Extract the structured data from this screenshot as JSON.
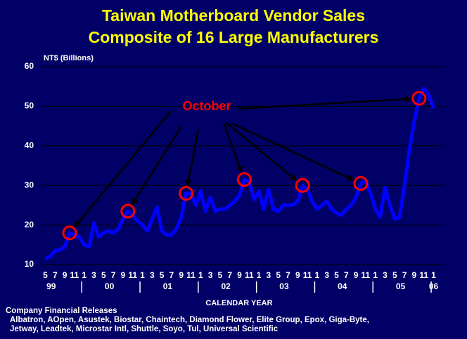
{
  "chart_data": {
    "type": "line",
    "title": "Taiwan Motherboard Vendor Sales",
    "subtitle": "Composite of 16 Large Manufacturers",
    "y_label": "NT$ (Billions)",
    "x_label": "CALENDAR YEAR",
    "annotation": "October",
    "color": "#0000ff",
    "ylim": [
      10,
      60
    ],
    "yticks": [
      10,
      20,
      30,
      40,
      50,
      60
    ],
    "grid": true,
    "categories": [
      "5",
      null,
      "7",
      null,
      "9",
      null,
      "11",
      null,
      "1",
      null,
      "3",
      null,
      "5",
      null,
      "7",
      null,
      "9",
      null,
      "11",
      null,
      "1",
      null,
      "3",
      null,
      "5",
      null,
      "7",
      null,
      "9",
      null,
      "11",
      null,
      "1",
      null,
      "3",
      null,
      "5",
      null,
      "7",
      null,
      "9",
      null,
      "11",
      null,
      "1",
      null,
      "3",
      null,
      "5",
      null,
      "7",
      null,
      "9",
      null,
      "11",
      null,
      "1",
      null,
      "3",
      null,
      "5",
      null,
      "7",
      null,
      "9",
      null,
      "11",
      null,
      "1",
      null,
      "3",
      null,
      "5",
      null,
      "7",
      null,
      "9",
      null,
      "11",
      null,
      "1"
    ],
    "values": [
      11.5,
      12,
      13.5,
      13.7,
      14.5,
      18,
      17.5,
      17,
      15,
      14.5,
      20.5,
      17,
      18,
      18.5,
      18,
      19,
      21.5,
      23.5,
      22.5,
      21,
      20,
      18.5,
      21.5,
      24.5,
      18.5,
      17.5,
      17.5,
      19,
      22,
      28,
      28,
      25,
      28.5,
      23.5,
      27,
      23.5,
      24,
      24,
      25,
      26,
      27.5,
      31.5,
      31,
      26.5,
      28.5,
      24,
      29,
      24,
      23.5,
      25,
      25,
      25,
      26,
      30,
      29,
      26,
      24,
      25,
      26,
      24,
      23,
      22.5,
      24,
      25,
      27,
      30.5,
      31,
      28,
      24,
      22,
      29.5,
      25,
      21.5,
      22,
      30,
      39,
      46,
      52,
      54.5,
      53,
      49.5
    ],
    "year_labels": [
      "99",
      "00",
      "01",
      "02",
      "03",
      "04",
      "05",
      "06"
    ],
    "source_title": "Company Financial Releases",
    "source_lines": [
      "Albatron, AOpen, Asustek, Biostar, Chaintech, Diamond Flower, Elite Group, Epox, Giga-Byte,",
      "Jetway, Leadtek, Microstar Intl, Shuttle, Soyo, Tul, Universal Scientific"
    ]
  }
}
